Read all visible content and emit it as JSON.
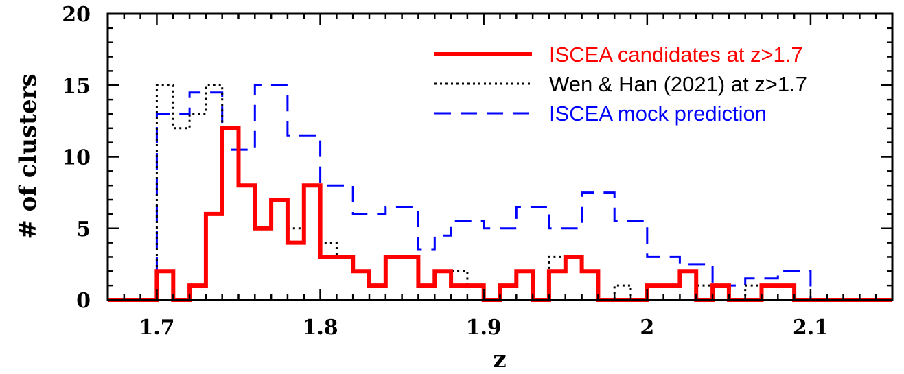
{
  "chart_data": {
    "type": "line",
    "xlabel": "z",
    "ylabel": "# of clusters",
    "xlim": [
      1.67,
      2.15
    ],
    "ylim": [
      0,
      20
    ],
    "x_ticks": [
      1.7,
      1.8,
      1.9,
      2.0,
      2.1
    ],
    "x_tick_labels": [
      "1.7",
      "1.8",
      "1.9",
      "2",
      "2.1"
    ],
    "y_ticks": [
      0,
      5,
      10,
      15,
      20
    ],
    "y_tick_labels": [
      "0",
      "5",
      "10",
      "15",
      "20"
    ],
    "legend_position": "top-right",
    "grid": false,
    "series": [
      {
        "name": "ISCEA mock prediction",
        "style": "dashed",
        "color": "#0000ff",
        "bin_edges": [
          1.7,
          1.72,
          1.74,
          1.76,
          1.78,
          1.8,
          1.82,
          1.84,
          1.86,
          1.87,
          1.88,
          1.9,
          1.92,
          1.94,
          1.96,
          1.98,
          2.0,
          2.02,
          2.04,
          2.06,
          2.08,
          2.1
        ],
        "counts": [
          13,
          14.5,
          10.5,
          15,
          11.5,
          8,
          6,
          6.5,
          3.5,
          4.5,
          5.5,
          5,
          6.5,
          5,
          7.5,
          5.5,
          3,
          2.5,
          1,
          1.5,
          2
        ]
      },
      {
        "name": "Wen & Han (2021) at z>1.7",
        "style": "dotted",
        "color": "#000000",
        "bin_edges": [
          1.7,
          1.71,
          1.72,
          1.73,
          1.74,
          1.75,
          1.76,
          1.77,
          1.78,
          1.79,
          1.8,
          1.81,
          1.82,
          1.83,
          1.84,
          1.86,
          1.87,
          1.88,
          1.89,
          1.9,
          1.91,
          1.92,
          1.93,
          1.94,
          1.95,
          1.96,
          1.97,
          1.98,
          1.99,
          2.0,
          2.02,
          2.03,
          2.04,
          2.05,
          2.06,
          2.07,
          2.08,
          2.09,
          2.1
        ],
        "counts": [
          15,
          12,
          13,
          15,
          12,
          8,
          5,
          7,
          5,
          8,
          4,
          3,
          2,
          1,
          3,
          1,
          2,
          2,
          1,
          0,
          1,
          2,
          0,
          3,
          3,
          2,
          0,
          1,
          0,
          1,
          2,
          1,
          0,
          0,
          1,
          0,
          0,
          0
        ]
      },
      {
        "name": "ISCEA candidates at z>1.7",
        "style": "solid",
        "color": "#ff0000",
        "bin_edges": [
          1.67,
          1.7,
          1.71,
          1.72,
          1.73,
          1.74,
          1.75,
          1.76,
          1.77,
          1.78,
          1.79,
          1.8,
          1.81,
          1.82,
          1.83,
          1.84,
          1.86,
          1.87,
          1.88,
          1.89,
          1.9,
          1.91,
          1.92,
          1.93,
          1.94,
          1.95,
          1.96,
          1.97,
          1.98,
          1.99,
          2.0,
          2.02,
          2.03,
          2.04,
          2.05,
          2.06,
          2.07,
          2.08,
          2.09,
          2.1,
          2.15
        ],
        "counts": [
          0,
          2,
          0,
          1,
          6,
          12,
          8,
          5,
          7,
          4,
          8,
          3,
          3,
          2,
          1,
          3,
          1,
          2,
          1,
          1,
          0,
          1,
          2,
          0,
          2,
          3,
          2,
          0,
          0,
          0,
          1,
          2,
          0,
          1,
          0,
          0,
          1,
          1,
          0,
          0
        ]
      }
    ]
  }
}
